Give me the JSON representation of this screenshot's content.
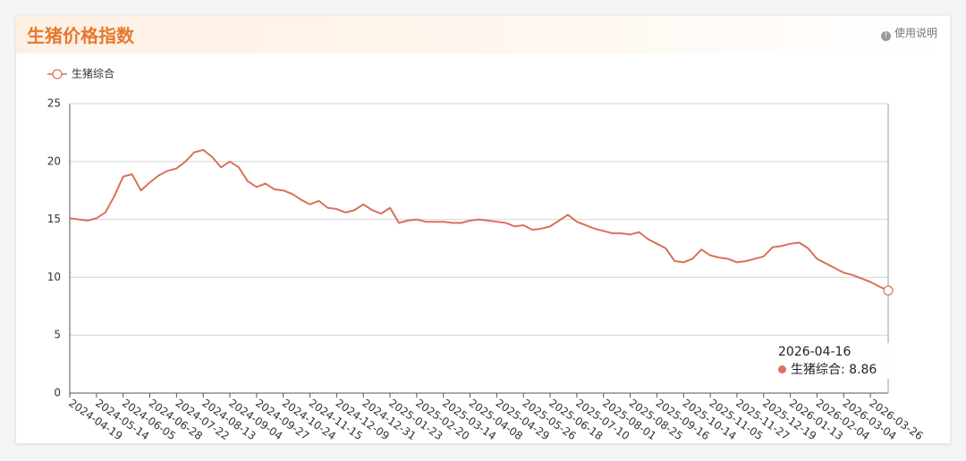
{
  "header": {
    "title": "生猪价格指数",
    "help": "使用说明"
  },
  "chart_data": {
    "type": "line",
    "categories": [
      "2024-04-19",
      null,
      null,
      "2024-05-14",
      null,
      null,
      "2024-06-05",
      null,
      null,
      "2024-06-28",
      null,
      null,
      "2024-07-22",
      null,
      null,
      "2024-08-13",
      null,
      null,
      "2024-09-04",
      null,
      null,
      "2024-09-27",
      null,
      null,
      "2024-10-24",
      null,
      null,
      "2024-11-15",
      null,
      null,
      "2024-12-09",
      null,
      null,
      "2024-12-31",
      null,
      null,
      "2025-01-23",
      null,
      null,
      "2025-02-20",
      null,
      null,
      "2025-03-14",
      null,
      null,
      "2025-04-08",
      null,
      null,
      "2025-04-29",
      null,
      null,
      "2025-05-26",
      null,
      null,
      "2025-06-18",
      null,
      null,
      "2025-07-10",
      null,
      null,
      "2025-08-01",
      null,
      null,
      "2025-08-25",
      null,
      null,
      "2025-09-16",
      null,
      null,
      "2025-10-14",
      null,
      null,
      "2025-11-05",
      null,
      null,
      "2025-11-27",
      null,
      null,
      "2025-12-19",
      null,
      null,
      "2026-01-13",
      null,
      null,
      "2026-02-04",
      null,
      null,
      "2026-03-04",
      null,
      null,
      "2026-03-26",
      null,
      null
    ],
    "series": [
      {
        "name": "生猪综合",
        "color": "#d9705a",
        "values": [
          15.1,
          15.0,
          14.9,
          15.1,
          15.6,
          17.0,
          18.7,
          18.9,
          17.5,
          18.2,
          18.8,
          19.2,
          19.4,
          20.0,
          20.8,
          21.0,
          20.4,
          19.5,
          20.0,
          19.5,
          18.3,
          17.8,
          18.1,
          17.6,
          17.5,
          17.2,
          16.7,
          16.3,
          16.6,
          16.0,
          15.9,
          15.6,
          15.8,
          16.3,
          15.8,
          15.5,
          16.0,
          14.7,
          14.9,
          15.0,
          14.8,
          14.8,
          14.8,
          14.7,
          14.7,
          14.9,
          15.0,
          14.9,
          14.8,
          14.7,
          14.4,
          14.5,
          14.1,
          14.2,
          14.4,
          14.9,
          15.4,
          14.8,
          14.5,
          14.2,
          14.0,
          13.8,
          13.8,
          13.7,
          13.9,
          13.3,
          12.9,
          12.5,
          11.4,
          11.3,
          11.6,
          12.4,
          11.9,
          11.7,
          11.6,
          11.3,
          11.4,
          11.6,
          11.8,
          12.6,
          12.7,
          12.9,
          13.0,
          12.5,
          11.6,
          11.2,
          10.8,
          10.4,
          10.2,
          9.9,
          9.6,
          9.2,
          8.86
        ]
      }
    ],
    "ylim": [
      0,
      25
    ],
    "yticks": [
      0,
      5,
      10,
      15,
      20,
      25
    ],
    "grid": true,
    "legend": "top-left",
    "tooltip": {
      "date": "2026-04-16"
    }
  }
}
